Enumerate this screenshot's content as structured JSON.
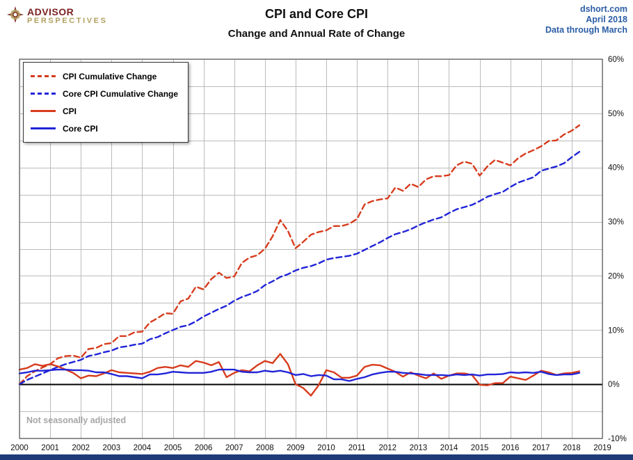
{
  "header": {
    "logo": {
      "line1": "ADVISOR",
      "line2": "PERSPECTIVES"
    },
    "title": "CPI and Core CPI",
    "subtitle": "Change and Annual Rate of Change",
    "source": {
      "site": "dshort.com",
      "date": "April 2018",
      "note": "Data through March"
    }
  },
  "legend": {
    "items": [
      {
        "label": "CPI Cumulative Change",
        "color": "#d73b1c",
        "dashed": true
      },
      {
        "label": "Core CPI Cumulative Change",
        "color": "#2024d8",
        "dashed": true
      },
      {
        "label": "CPI",
        "color": "#d73b1c",
        "dashed": false
      },
      {
        "label": "Core CPI",
        "color": "#2024d8",
        "dashed": false
      }
    ]
  },
  "annotation": "Not seasonally adjusted",
  "colors": {
    "red": "#d73b1c",
    "blue": "#2024d8",
    "grid": "#bbbbbb",
    "border": "#444444",
    "zero_line": "#000000",
    "tick_text": "#111111",
    "source_blue": "#2b5da6",
    "logo_maroon": "#7b2222",
    "logo_tan": "#b1a05f",
    "bottom_bar": "#1e3c78"
  },
  "chart_data": {
    "type": "line",
    "title": "CPI and Core CPI",
    "subtitle": "Change and Annual Rate of Change",
    "xlabel": "",
    "ylabel": "",
    "xlim": [
      2000,
      2019
    ],
    "ylim": [
      -10,
      60
    ],
    "y_grid_step": 5,
    "grid": true,
    "legend_position": "top-left",
    "x_ticks": [
      {
        "v": 2000,
        "label": "2000"
      },
      {
        "v": 2001,
        "label": "2001"
      },
      {
        "v": 2002,
        "label": "2002"
      },
      {
        "v": 2003,
        "label": "2003"
      },
      {
        "v": 2004,
        "label": "2004"
      },
      {
        "v": 2005,
        "label": "2005"
      },
      {
        "v": 2006,
        "label": "2006"
      },
      {
        "v": 2007,
        "label": "2007"
      },
      {
        "v": 2008,
        "label": "2008"
      },
      {
        "v": 2009,
        "label": "2009"
      },
      {
        "v": 2010,
        "label": "2010"
      },
      {
        "v": 2011,
        "label": "2011"
      },
      {
        "v": 2012,
        "label": "2012"
      },
      {
        "v": 2013,
        "label": "2013"
      },
      {
        "v": 2014,
        "label": "2014"
      },
      {
        "v": 2015,
        "label": "2015"
      },
      {
        "v": 2016,
        "label": "2016"
      },
      {
        "v": 2017,
        "label": "2017"
      },
      {
        "v": 2018,
        "label": "2018"
      },
      {
        "v": 2019,
        "label": "2019"
      }
    ],
    "y_ticks": [
      {
        "v": 60,
        "label": "60%"
      },
      {
        "v": 50,
        "label": "50%"
      },
      {
        "v": 40,
        "label": "40%"
      },
      {
        "v": 30,
        "label": "30%"
      },
      {
        "v": 20,
        "label": "20%"
      },
      {
        "v": 10,
        "label": "10%"
      },
      {
        "v": 0,
        "label": "0%"
      },
      {
        "v": -10,
        "label": "-10%"
      }
    ],
    "x": [
      2000,
      2000.25,
      2000.5,
      2000.75,
      2001,
      2001.25,
      2001.5,
      2001.75,
      2002,
      2002.25,
      2002.5,
      2002.75,
      2003,
      2003.25,
      2003.5,
      2003.75,
      2004,
      2004.25,
      2004.5,
      2004.75,
      2005,
      2005.25,
      2005.5,
      2005.75,
      2006,
      2006.25,
      2006.5,
      2006.75,
      2007,
      2007.25,
      2007.5,
      2007.75,
      2008,
      2008.25,
      2008.5,
      2008.75,
      2009,
      2009.25,
      2009.5,
      2009.75,
      2010,
      2010.25,
      2010.5,
      2010.75,
      2011,
      2011.25,
      2011.5,
      2011.75,
      2012,
      2012.25,
      2012.5,
      2012.75,
      2013,
      2013.25,
      2013.5,
      2013.75,
      2014,
      2014.25,
      2014.5,
      2014.75,
      2015,
      2015.25,
      2015.5,
      2015.75,
      2016,
      2016.25,
      2016.5,
      2016.75,
      2017,
      2017.25,
      2017.5,
      2017.75,
      2018,
      2018.25
    ],
    "series": [
      {
        "id": "cpi-cumulative",
        "name": "CPI Cumulative Change",
        "style": "dashed",
        "color": "#d73b1c",
        "values": [
          0,
          1.5,
          2.4,
          3.1,
          3.7,
          4.8,
          5.2,
          5.3,
          4.9,
          6.5,
          6.7,
          7.4,
          7.6,
          8.9,
          8.9,
          9.6,
          9.7,
          11.4,
          12.2,
          13.1,
          13,
          15.3,
          15.8,
          18,
          17.5,
          19.4,
          20.6,
          19.6,
          19.9,
          22.4,
          23.4,
          23.8,
          25,
          27.3,
          30.3,
          28.3,
          25.1,
          26.3,
          27.6,
          28.1,
          28.4,
          29.2,
          29.2,
          29.6,
          30.5,
          33.2,
          33.8,
          34.1,
          34.3,
          36.3,
          35.7,
          37,
          36.4,
          37.8,
          38.4,
          38.4,
          38.6,
          40.4,
          41.1,
          40.7,
          38.5,
          40.2,
          41.4,
          40.9,
          40.4,
          41.7,
          42.6,
          43.2,
          43.9,
          44.9,
          45,
          46.1,
          46.8,
          47.8
        ]
      },
      {
        "id": "core-cpi-cumulative",
        "name": "Core CPI Cumulative Change",
        "style": "dashed",
        "color": "#2024d8",
        "values": [
          0,
          0.8,
          1.4,
          2,
          2.6,
          3.2,
          3.7,
          4.1,
          4.5,
          5.2,
          5.5,
          5.9,
          6.2,
          6.8,
          7,
          7.3,
          7.5,
          8.3,
          8.7,
          9.4,
          10,
          10.6,
          10.9,
          11.6,
          12.5,
          13.2,
          13.9,
          14.5,
          15.4,
          16.1,
          16.6,
          17.2,
          18.3,
          19,
          19.8,
          20.3,
          21,
          21.5,
          21.8,
          22.3,
          23,
          23.3,
          23.5,
          23.7,
          24.1,
          24.8,
          25.5,
          26.2,
          27,
          27.7,
          28.1,
          28.6,
          29.3,
          29.9,
          30.4,
          30.8,
          31.6,
          32.3,
          32.7,
          33.1,
          33.8,
          34.6,
          35.1,
          35.5,
          36.4,
          37.2,
          37.7,
          38.2,
          39.4,
          39.8,
          40.2,
          40.8,
          41.9,
          42.9
        ]
      },
      {
        "id": "cpi",
        "name": "CPI",
        "style": "solid",
        "color": "#d73b1c",
        "values": [
          2.7,
          3,
          3.7,
          3.4,
          3.7,
          3.3,
          2.7,
          2.1,
          1.1,
          1.6,
          1.5,
          2,
          2.6,
          2.2,
          2.1,
          2,
          1.9,
          2.3,
          3,
          3.2,
          3,
          3.5,
          3.2,
          4.3,
          4,
          3.5,
          4.1,
          1.3,
          2.1,
          2.6,
          2.4,
          3.5,
          4.3,
          3.9,
          5.6,
          3.7,
          0,
          -0.7,
          -2.1,
          -0.2,
          2.6,
          2.2,
          1.2,
          1.2,
          1.6,
          3.2,
          3.6,
          3.5,
          2.9,
          2.3,
          1.4,
          2.2,
          1.6,
          1.1,
          2,
          1,
          1.6,
          2,
          2,
          1.7,
          -0.1,
          -0.2,
          0.2,
          0.2,
          1.4,
          1.1,
          0.8,
          1.6,
          2.5,
          2.2,
          1.7,
          2,
          2.1,
          2.4
        ]
      },
      {
        "id": "core-cpi",
        "name": "Core CPI",
        "style": "solid",
        "color": "#2024d8",
        "values": [
          2,
          2.2,
          2.5,
          2.5,
          2.6,
          2.7,
          2.7,
          2.6,
          2.6,
          2.5,
          2.2,
          2.2,
          1.9,
          1.5,
          1.5,
          1.3,
          1.1,
          1.8,
          1.8,
          2,
          2.3,
          2.2,
          2.1,
          2.1,
          2.1,
          2.3,
          2.7,
          2.7,
          2.7,
          2.3,
          2.2,
          2.2,
          2.5,
          2.3,
          2.5,
          2.2,
          1.7,
          1.9,
          1.5,
          1.7,
          1.6,
          0.9,
          0.9,
          0.6,
          1,
          1.3,
          1.8,
          2.1,
          2.3,
          2.3,
          2.1,
          2,
          1.9,
          1.7,
          1.7,
          1.7,
          1.6,
          1.8,
          1.7,
          1.8,
          1.6,
          1.8,
          1.8,
          1.9,
          2.2,
          2.1,
          2.2,
          2.1,
          2.3,
          1.9,
          1.7,
          1.8,
          1.8,
          2.1
        ]
      }
    ]
  }
}
